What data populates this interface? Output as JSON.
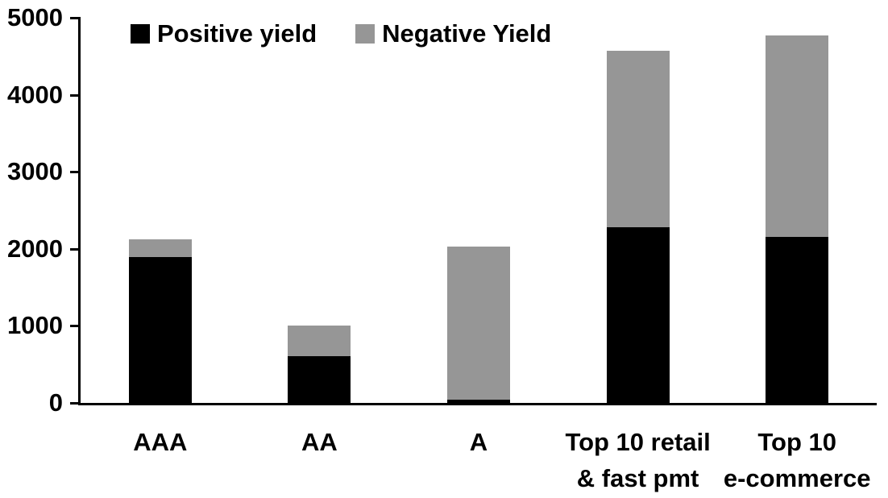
{
  "chart_data": {
    "type": "bar",
    "stacked": true,
    "title": "",
    "categories": [
      "AAA",
      "AA",
      "A",
      "Top 10 retail\n& fast pmt",
      "Top 10\ne-commerce"
    ],
    "series": [
      {
        "name": "Positive yield",
        "color": "#000000",
        "values": [
          1890,
          610,
          40,
          2280,
          2150
        ]
      },
      {
        "name": "Negative Yield",
        "color": "#969696",
        "values": [
          230,
          390,
          1990,
          2290,
          2620
        ]
      }
    ],
    "totals": [
      2120,
      1000,
      2030,
      4570,
      4770
    ],
    "xlabel": "",
    "ylabel": "",
    "ylim": [
      0,
      5000
    ],
    "ytick_step": 1000,
    "ytick_labels": [
      "0",
      "1000",
      "2000",
      "3000",
      "4000",
      "5000"
    ],
    "grid": false,
    "legend_position": "top",
    "axis_color": "#000000",
    "background_color": "#ffffff"
  }
}
